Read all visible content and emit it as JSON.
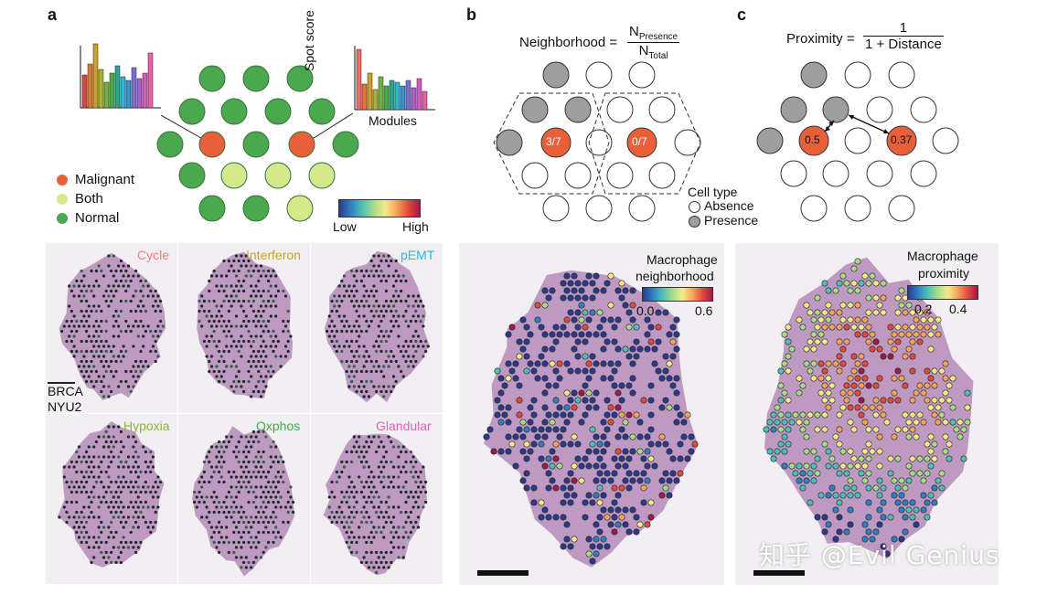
{
  "panels": {
    "a": {
      "letter": "a",
      "spot_score_label": "Spot score",
      "modules_label": "Modules",
      "legend": [
        {
          "label": "Malignant",
          "color": "#e8603a"
        },
        {
          "label": "Both",
          "color": "#d4e98a"
        },
        {
          "label": "Normal",
          "color": "#4aa84e"
        }
      ],
      "colorbar_low": "Low",
      "colorbar_high": "High",
      "sample_line1": "BRCA",
      "sample_line2": "NYU2",
      "tiles": [
        {
          "label": "Cycle",
          "color": "#f08080"
        },
        {
          "label": "Interferon",
          "color": "#c9a227"
        },
        {
          "label": "pEMT",
          "color": "#2bb5d8"
        },
        {
          "label": "Hypoxia",
          "color": "#8bb53c"
        },
        {
          "label": "Oxphos",
          "color": "#3fae49"
        },
        {
          "label": "Glandular",
          "color": "#e060c8"
        }
      ]
    },
    "b": {
      "letter": "b",
      "formula_label": "Neighborhood =",
      "numerator": "N",
      "numerator_sub": "Presence",
      "denominator": "N",
      "denominator_sub": "Total",
      "value_left": "3/7",
      "value_right": "0/7",
      "celltype_title": "Cell type",
      "absence_label": "Absence",
      "presence_label": "Presence",
      "map_title_line1": "Macrophage",
      "map_title_line2": "neighborhood",
      "tick_low": "0.0",
      "tick_high": "0.6"
    },
    "c": {
      "letter": "c",
      "formula_label": "Proximity =",
      "numerator": "1",
      "denominator": "1 + Distance",
      "value_left": "0.5",
      "value_right": "0.37",
      "map_title_line1": "Macrophage",
      "map_title_line2": "proximity",
      "tick_low": "0.2",
      "tick_high": "0.4"
    }
  },
  "watermark": "知乎 @Evil Genius",
  "colors": {
    "malignant": "#e8603a",
    "both": "#d4e98a",
    "normal": "#4aa84e",
    "presence": "#9e9e9e",
    "tissue": "#b58ab8"
  }
}
